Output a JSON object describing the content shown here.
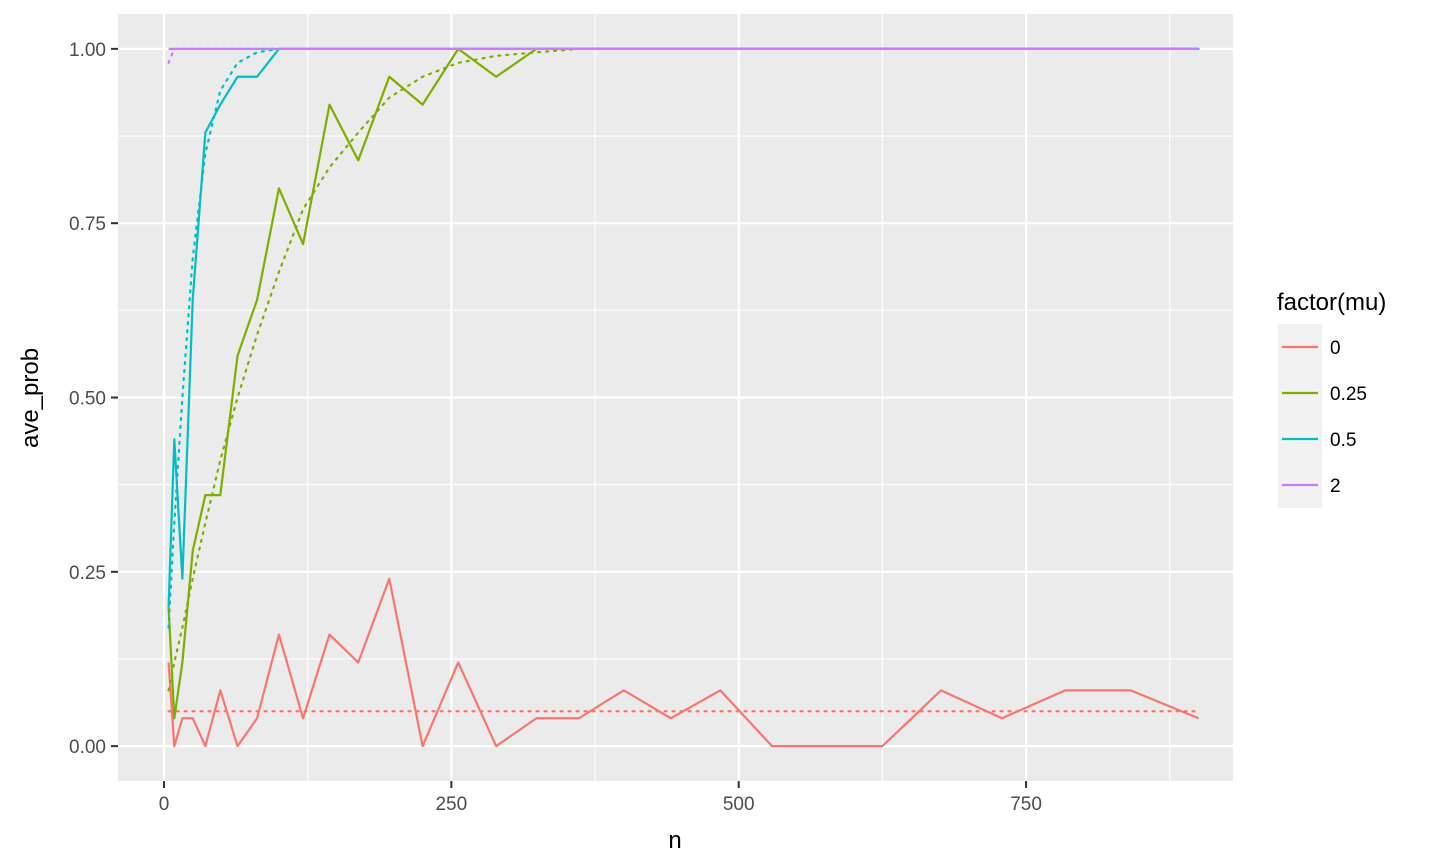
{
  "chart_data": {
    "type": "line",
    "xlabel": "n",
    "ylabel": "ave_prob",
    "xlim": [
      -40,
      930
    ],
    "ylim": [
      -0.05,
      1.05
    ],
    "x_ticks": [
      0,
      250,
      500,
      750
    ],
    "x_tick_labels": [
      "0",
      "250",
      "500",
      "750"
    ],
    "y_ticks": [
      0,
      0.25,
      0.5,
      0.75,
      1
    ],
    "y_tick_labels": [
      "0.00",
      "0.25",
      "0.50",
      "0.75",
      "1.00"
    ],
    "grid": true,
    "legend": {
      "title": "factor(mu)",
      "position": "right",
      "entries": [
        "0",
        "0.25",
        "0.5",
        "2"
      ]
    },
    "x": [
      4,
      9,
      16,
      25,
      36,
      49,
      64,
      81,
      100,
      121,
      144,
      169,
      196,
      225,
      256,
      289,
      324,
      361,
      400,
      441,
      484,
      529,
      576,
      625,
      676,
      729,
      784,
      841,
      900
    ],
    "series": [
      {
        "name": "0",
        "color": "#F8766D",
        "simulated": [
          0.12,
          0,
          0.04,
          0.04,
          0,
          0.08,
          0,
          0.04,
          0.16,
          0.04,
          0.16,
          0.12,
          0.24,
          0,
          0.12,
          0,
          0.04,
          0.04,
          0.08,
          0.04,
          0.08,
          0,
          0,
          0,
          0.08,
          0.04,
          0.08,
          0.08,
          0.04
        ],
        "theoretical": [
          0.05,
          0.05,
          0.05,
          0.05,
          0.05,
          0.05,
          0.05,
          0.05,
          0.05,
          0.05,
          0.05,
          0.05,
          0.05,
          0.05,
          0.05,
          0.05,
          0.05,
          0.05,
          0.05,
          0.05,
          0.05,
          0.05,
          0.05,
          0.05,
          0.05,
          0.05,
          0.05,
          0.05,
          0.05
        ]
      },
      {
        "name": "0.25",
        "color": "#7CAE00",
        "simulated": [
          0.2,
          0.04,
          0.12,
          0.28,
          0.36,
          0.36,
          0.56,
          0.64,
          0.8,
          0.72,
          0.92,
          0.84,
          0.96,
          0.92,
          1,
          0.96,
          1,
          1,
          1,
          1,
          1,
          1,
          1,
          1,
          1,
          1,
          1,
          1,
          1
        ],
        "theoretical": [
          0.08,
          0.12,
          0.17,
          0.24,
          0.32,
          0.41,
          0.5,
          0.59,
          0.68,
          0.77,
          0.83,
          0.88,
          0.93,
          0.96,
          0.98,
          0.99,
          0.995,
          1,
          1,
          1,
          1,
          1,
          1,
          1,
          1,
          1,
          1,
          1,
          1
        ]
      },
      {
        "name": "0.5",
        "color": "#00BFC4",
        "simulated": [
          0.2,
          0.44,
          0.24,
          0.64,
          0.88,
          0.92,
          0.96,
          0.96,
          1,
          1,
          1,
          1,
          1,
          1,
          1,
          1,
          1,
          1,
          1,
          1,
          1,
          1,
          1,
          1,
          1,
          1,
          1,
          1,
          1
        ],
        "theoretical": [
          0.17,
          0.32,
          0.5,
          0.7,
          0.85,
          0.94,
          0.98,
          0.995,
          1,
          1,
          1,
          1,
          1,
          1,
          1,
          1,
          1,
          1,
          1,
          1,
          1,
          1,
          1,
          1,
          1,
          1,
          1,
          1,
          1
        ]
      },
      {
        "name": "2",
        "color": "#C77CFF",
        "simulated": [
          1,
          1,
          1,
          1,
          1,
          1,
          1,
          1,
          1,
          1,
          1,
          1,
          1,
          1,
          1,
          1,
          1,
          1,
          1,
          1,
          1,
          1,
          1,
          1,
          1,
          1,
          1,
          1,
          1
        ],
        "theoretical": [
          0.98,
          1,
          1,
          1,
          1,
          1,
          1,
          1,
          1,
          1,
          1,
          1,
          1,
          1,
          1,
          1,
          1,
          1,
          1,
          1,
          1,
          1,
          1,
          1,
          1,
          1,
          1,
          1,
          1
        ]
      }
    ]
  }
}
